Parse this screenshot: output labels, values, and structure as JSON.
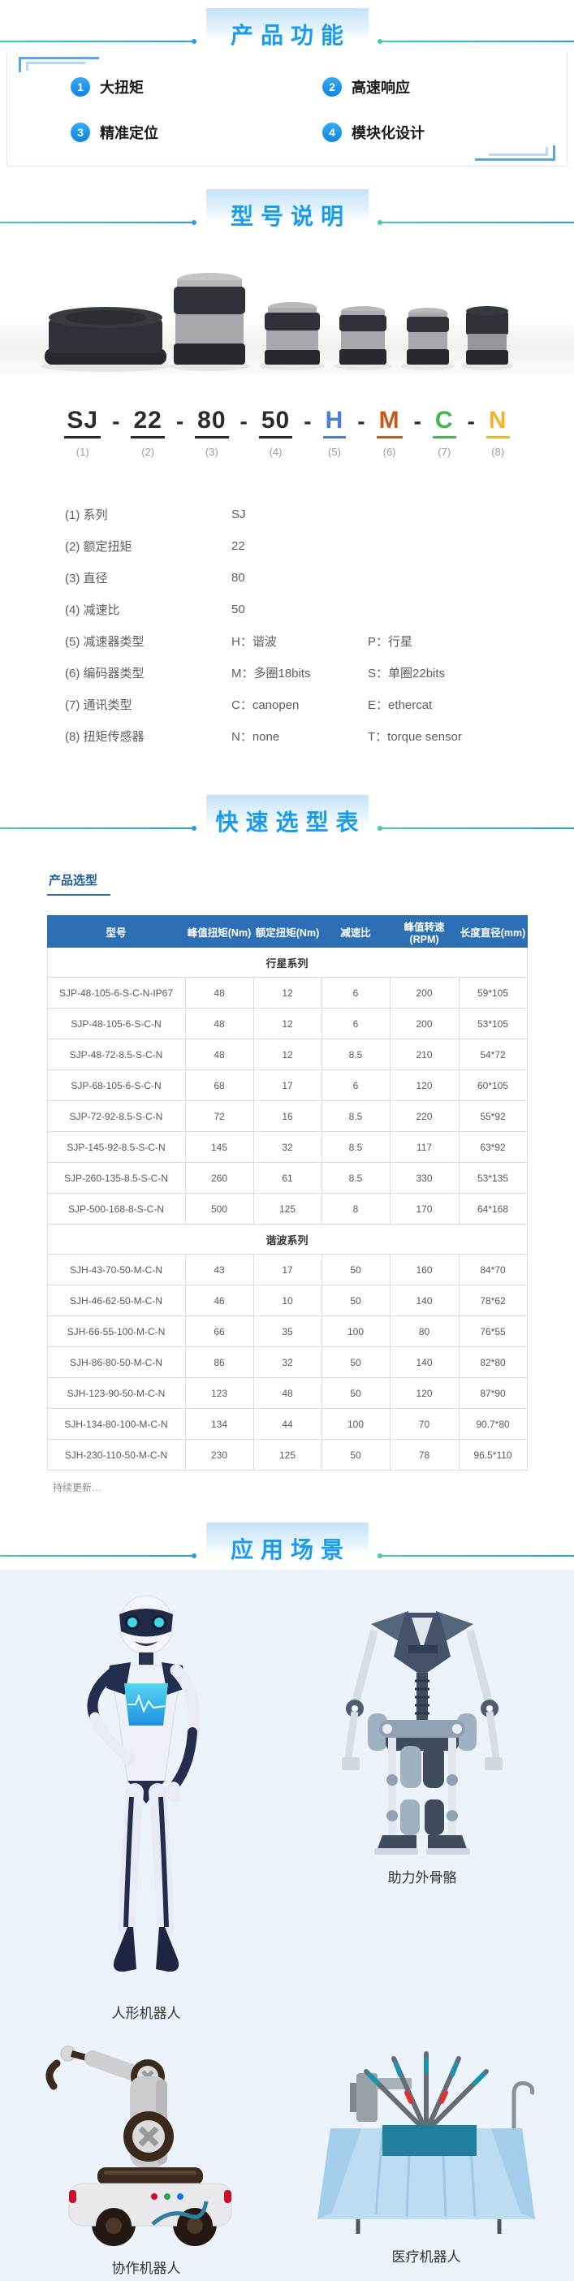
{
  "colors": {
    "title_blue": "#199bf0",
    "table_header_bg": "#2d6fb5",
    "line_teal": "#3ed0a5",
    "line_blue": "#2b9be8",
    "badge_blue": "#1e97ec"
  },
  "features": {
    "title": "产品功能",
    "items": [
      {
        "num": "1",
        "label": "大扭矩"
      },
      {
        "num": "2",
        "label": "高速响应"
      },
      {
        "num": "3",
        "label": "精准定位"
      },
      {
        "num": "4",
        "label": "模块化设计"
      }
    ]
  },
  "model": {
    "title": "型号说明",
    "separator": "-",
    "code": [
      {
        "text": "SJ",
        "idx": "(1)",
        "color": "#2b2b2b"
      },
      {
        "text": "22",
        "idx": "(2)",
        "color": "#2b2b2b"
      },
      {
        "text": "80",
        "idx": "(3)",
        "color": "#2b2b2b"
      },
      {
        "text": "50",
        "idx": "(4)",
        "color": "#2b2b2b"
      },
      {
        "text": "H",
        "idx": "(5)",
        "color": "#4a7dd3"
      },
      {
        "text": "M",
        "idx": "(6)",
        "color": "#c05a1f"
      },
      {
        "text": "C",
        "idx": "(7)",
        "color": "#43b649"
      },
      {
        "text": "N",
        "idx": "(8)",
        "color": "#f4b42c"
      }
    ],
    "legend": [
      {
        "idx": "(1)",
        "label": "系列",
        "v1": "SJ",
        "v2": ""
      },
      {
        "idx": "(2)",
        "label": "额定扭矩",
        "v1": "22",
        "v2": ""
      },
      {
        "idx": "(3)",
        "label": "直径",
        "v1": "80",
        "v2": ""
      },
      {
        "idx": "(4)",
        "label": "减速比",
        "v1": "50",
        "v2": ""
      },
      {
        "idx": "(5)",
        "label": "减速器类型",
        "v1": "H：谐波",
        "v2": "P：行星"
      },
      {
        "idx": "(6)",
        "label": "编码器类型",
        "v1": "M：多圈18bits",
        "v2": "S：单圈22bits"
      },
      {
        "idx": "(7)",
        "label": "通讯类型",
        "v1": "C：canopen",
        "v2": "E：ethercat"
      },
      {
        "idx": "(8)",
        "label": "扭矩传感器",
        "v1": "N：none",
        "v2": "T：torque sensor"
      }
    ]
  },
  "selection": {
    "title": "快速选型表",
    "tab": "产品选型",
    "note": "持续更新…",
    "table": {
      "headers": [
        "型号",
        "峰值扭矩(Nm)",
        "额定扭矩(Nm)",
        "减速比",
        "峰值转速(RPM)",
        "长度直径(mm)"
      ],
      "groups": [
        {
          "name": "行星系列",
          "rows": [
            [
              "SJP-48-105-6-S-C-N-IP67",
              "48",
              "12",
              "6",
              "200",
              "59*105"
            ],
            [
              "SJP-48-105-6-S-C-N",
              "48",
              "12",
              "6",
              "200",
              "53*105"
            ],
            [
              "SJP-48-72-8.5-S-C-N",
              "48",
              "12",
              "8.5",
              "210",
              "54*72"
            ],
            [
              "SJP-68-105-6-S-C-N",
              "68",
              "17",
              "6",
              "120",
              "60*105"
            ],
            [
              "SJP-72-92-8.5-S-C-N",
              "72",
              "16",
              "8.5",
              "220",
              "55*92"
            ],
            [
              "SJP-145-92-8.5-S-C-N",
              "145",
              "32",
              "8.5",
              "117",
              "63*92"
            ],
            [
              "SJP-260-135-8.5-S-C-N",
              "260",
              "61",
              "8.5",
              "330",
              "53*135"
            ],
            [
              "SJP-500-168-8-S-C-N",
              "500",
              "125",
              "8",
              "170",
              "64*168"
            ]
          ]
        },
        {
          "name": "谐波系列",
          "rows": [
            [
              "SJH-43-70-50-M-C-N",
              "43",
              "17",
              "50",
              "160",
              "84*70"
            ],
            [
              "SJH-46-62-50-M-C-N",
              "46",
              "10",
              "50",
              "140",
              "78*62"
            ],
            [
              "SJH-66-55-100-M-C-N",
              "66",
              "35",
              "100",
              "80",
              "76*55"
            ],
            [
              "SJH-86-80-50-M-C-N",
              "86",
              "32",
              "50",
              "140",
              "82*80"
            ],
            [
              "SJH-123-90-50-M-C-N",
              "123",
              "48",
              "50",
              "120",
              "87*90"
            ],
            [
              "SJH-134-80-100-M-C-N",
              "134",
              "44",
              "100",
              "70",
              "90.7*80"
            ],
            [
              "SJH-230-110-50-M-C-N",
              "230",
              "125",
              "50",
              "78",
              "96.5*110"
            ]
          ]
        }
      ]
    }
  },
  "applications": {
    "title": "应用场景",
    "items": [
      {
        "label": "人形机器人"
      },
      {
        "label": "助力外骨骼"
      },
      {
        "label": "协作机器人"
      },
      {
        "label": "医疗机器人"
      }
    ]
  }
}
